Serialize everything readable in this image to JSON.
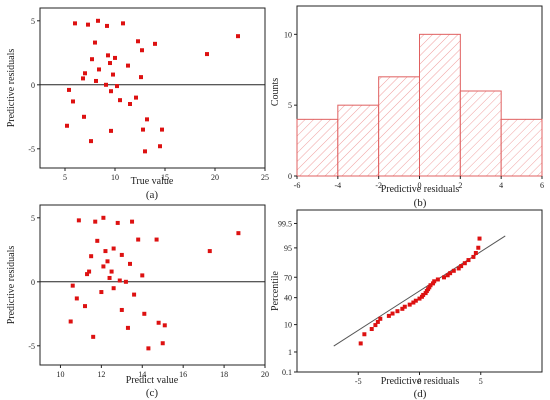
{
  "colors": {
    "point": "#dd1111",
    "hist_edge": "#e06060",
    "hist_hatch": "#f0a0a0",
    "fit_line": "#555555",
    "zero_line": "#222222"
  },
  "chart_data": [
    {
      "type": "scatter",
      "panel_label": "(a)",
      "xlabel": "True value",
      "ylabel": "Predictive residuals",
      "xlim": [
        2.5,
        25
      ],
      "ylim": [
        -6.5,
        6
      ],
      "xticks": [
        5,
        10,
        15,
        20,
        25
      ],
      "yticks": [
        -5,
        0,
        5
      ],
      "ref_line_y": 0,
      "points": [
        [
          6.0,
          4.8
        ],
        [
          7.3,
          4.7
        ],
        [
          8.3,
          5.0
        ],
        [
          9.2,
          4.6
        ],
        [
          10.8,
          4.8
        ],
        [
          12.3,
          3.4
        ],
        [
          14.0,
          3.2
        ],
        [
          19.2,
          2.4
        ],
        [
          22.3,
          3.8
        ],
        [
          8.0,
          3.3
        ],
        [
          12.7,
          2.7
        ],
        [
          9.3,
          2.3
        ],
        [
          10.0,
          2.1
        ],
        [
          7.7,
          2.0
        ],
        [
          9.5,
          1.7
        ],
        [
          11.3,
          1.5
        ],
        [
          8.4,
          1.2
        ],
        [
          7.0,
          0.9
        ],
        [
          9.8,
          0.8
        ],
        [
          12.6,
          0.6
        ],
        [
          6.8,
          0.5
        ],
        [
          8.1,
          0.3
        ],
        [
          9.1,
          0.0
        ],
        [
          10.2,
          -0.1
        ],
        [
          5.4,
          -0.4
        ],
        [
          9.6,
          -0.5
        ],
        [
          12.1,
          -1.0
        ],
        [
          10.5,
          -1.2
        ],
        [
          5.8,
          -1.3
        ],
        [
          11.5,
          -1.5
        ],
        [
          6.9,
          -2.5
        ],
        [
          13.2,
          -2.7
        ],
        [
          5.2,
          -3.2
        ],
        [
          12.8,
          -3.5
        ],
        [
          14.7,
          -3.5
        ],
        [
          9.6,
          -3.6
        ],
        [
          7.6,
          -4.4
        ],
        [
          14.5,
          -4.8
        ],
        [
          13.0,
          -5.2
        ]
      ]
    },
    {
      "type": "bar",
      "panel_label": "(b)",
      "xlabel": "Predictive residuals",
      "ylabel": "Counts",
      "xlim": [
        -6,
        6
      ],
      "ylim": [
        0,
        12
      ],
      "xticks": [
        -6,
        -4,
        -2,
        0,
        2,
        4,
        6
      ],
      "yticks": [
        0,
        5,
        10
      ],
      "bin_edges": [
        -6,
        -4,
        -2,
        0,
        2,
        4,
        6
      ],
      "values": [
        4,
        5,
        7,
        10,
        6,
        4
      ]
    },
    {
      "type": "scatter",
      "panel_label": "(c)",
      "xlabel": "Predict value",
      "ylabel": "Predictive residuals",
      "xlim": [
        9,
        20
      ],
      "ylim": [
        -6.5,
        6
      ],
      "xticks": [
        10,
        12,
        14,
        16,
        18,
        20
      ],
      "yticks": [
        -5,
        0,
        5
      ],
      "ref_line_y": 0,
      "points": [
        [
          10.9,
          4.8
        ],
        [
          11.7,
          4.7
        ],
        [
          12.1,
          5.0
        ],
        [
          12.8,
          4.6
        ],
        [
          13.5,
          4.7
        ],
        [
          14.7,
          3.3
        ],
        [
          17.3,
          2.4
        ],
        [
          18.7,
          3.8
        ],
        [
          13.8,
          3.3
        ],
        [
          11.8,
          3.2
        ],
        [
          12.6,
          2.6
        ],
        [
          12.2,
          2.4
        ],
        [
          13.0,
          2.1
        ],
        [
          11.5,
          2.0
        ],
        [
          12.3,
          1.6
        ],
        [
          13.4,
          1.4
        ],
        [
          12.1,
          1.2
        ],
        [
          11.4,
          0.8
        ],
        [
          12.5,
          0.8
        ],
        [
          14.0,
          0.5
        ],
        [
          11.3,
          0.6
        ],
        [
          12.4,
          0.3
        ],
        [
          12.9,
          0.1
        ],
        [
          13.2,
          0.0
        ],
        [
          10.6,
          -0.3
        ],
        [
          12.6,
          -0.5
        ],
        [
          12.0,
          -0.8
        ],
        [
          13.6,
          -1.0
        ],
        [
          10.8,
          -1.3
        ],
        [
          11.2,
          -1.9
        ],
        [
          13.0,
          -2.2
        ],
        [
          14.1,
          -2.5
        ],
        [
          10.5,
          -3.1
        ],
        [
          14.8,
          -3.2
        ],
        [
          15.1,
          -3.4
        ],
        [
          13.3,
          -3.6
        ],
        [
          11.6,
          -4.3
        ],
        [
          15.0,
          -4.8
        ],
        [
          14.3,
          -5.2
        ]
      ]
    },
    {
      "type": "scatter",
      "panel_label": "(d)",
      "xlabel": "Predictive residuals",
      "ylabel": "Percentile",
      "xlim": [
        -10,
        10
      ],
      "ylim_z": [
        -3.09,
        3.09
      ],
      "xticks": [
        -5,
        0,
        5
      ],
      "yticks": [
        0.1,
        1,
        10,
        40,
        70,
        95,
        99.5
      ],
      "tick_labels_y": [
        "0.1",
        "1",
        "10",
        "40",
        "70",
        "95",
        "99.5"
      ],
      "fit_line": {
        "x": [
          -7,
          7
        ],
        "z": [
          -2.1,
          2.1
        ]
      },
      "points": [
        [
          -4.8,
          -2.0
        ],
        [
          -4.5,
          -1.65
        ],
        [
          -3.9,
          -1.45
        ],
        [
          -3.6,
          -1.3
        ],
        [
          -3.4,
          -1.18
        ],
        [
          -3.2,
          -1.06
        ],
        [
          -2.5,
          -0.95
        ],
        [
          -2.2,
          -0.86
        ],
        [
          -1.8,
          -0.77
        ],
        [
          -1.4,
          -0.68
        ],
        [
          -1.2,
          -0.6
        ],
        [
          -0.8,
          -0.52
        ],
        [
          -0.5,
          -0.44
        ],
        [
          -0.3,
          -0.37
        ],
        [
          0.0,
          -0.29
        ],
        [
          0.2,
          -0.22
        ],
        [
          0.3,
          -0.15
        ],
        [
          0.5,
          -0.08
        ],
        [
          0.6,
          0.0
        ],
        [
          0.7,
          0.07
        ],
        [
          0.8,
          0.14
        ],
        [
          0.9,
          0.22
        ],
        [
          1.1,
          0.29
        ],
        [
          1.2,
          0.37
        ],
        [
          1.5,
          0.44
        ],
        [
          2.0,
          0.52
        ],
        [
          2.3,
          0.6
        ],
        [
          2.5,
          0.68
        ],
        [
          2.8,
          0.77
        ],
        [
          3.2,
          0.86
        ],
        [
          3.4,
          0.95
        ],
        [
          3.7,
          1.06
        ],
        [
          4.0,
          1.18
        ],
        [
          4.4,
          1.3
        ],
        [
          4.6,
          1.45
        ],
        [
          4.8,
          1.65
        ],
        [
          4.9,
          2.0
        ]
      ]
    }
  ]
}
